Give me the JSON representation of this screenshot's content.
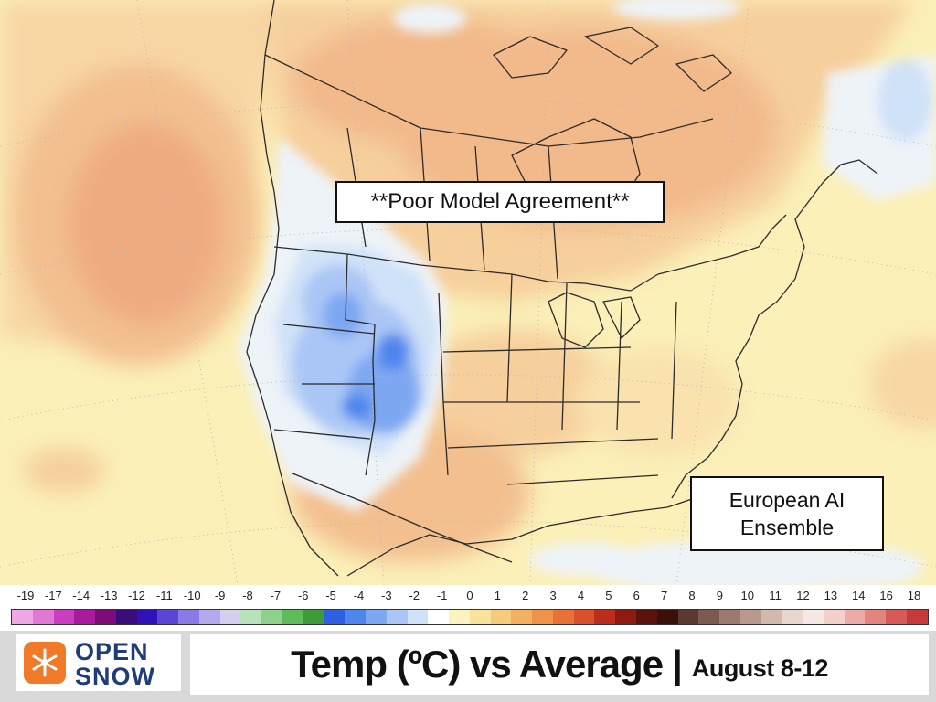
{
  "map": {
    "annotation_primary": "**Poor Model Agreement**",
    "annotation_model": "European AI\nEnsemble"
  },
  "legend": {
    "ticks": [
      "-19",
      "-17",
      "-14",
      "-13",
      "-12",
      "-11",
      "-10",
      "-9",
      "-8",
      "-7",
      "-6",
      "-5",
      "-4",
      "-3",
      "-2",
      "-1",
      "0",
      "1",
      "2",
      "3",
      "4",
      "5",
      "6",
      "7",
      "8",
      "9",
      "10",
      "11",
      "12",
      "13",
      "14",
      "16",
      "18"
    ],
    "colors": [
      "#f0a8e4",
      "#e278d6",
      "#c93fbf",
      "#a91a9c",
      "#7c0c78",
      "#3a0d7a",
      "#3012b8",
      "#5a45d6",
      "#8a7ae6",
      "#b4a8ee",
      "#d4ceef",
      "#b8e2b8",
      "#8fd18a",
      "#5fbb58",
      "#3f9a3a",
      "#2f5fe0",
      "#4f86ec",
      "#7ea7f2",
      "#aac6f6",
      "#d0e2f8",
      "#ffffff",
      "#fcf4c0",
      "#f9e29a",
      "#f7cb7c",
      "#f4b062",
      "#ef924a",
      "#e97036",
      "#d9502a",
      "#bb2e1c",
      "#8c1b10",
      "#5c130c",
      "#3b0f0a",
      "#5a3a30",
      "#7d5a50",
      "#9c7a70",
      "#b9988e",
      "#d3b8ae",
      "#e9d6ce",
      "#f6e8e4",
      "#f4d0cc",
      "#eeaaa6",
      "#e28480",
      "#d65a58",
      "#c73a3a"
    ]
  },
  "footer": {
    "logo_line1": "OPEN",
    "logo_line2": "SNOW",
    "title_main": "Temp (ºC) vs Average",
    "title_sep": "|",
    "title_dates": "August 8-12"
  }
}
